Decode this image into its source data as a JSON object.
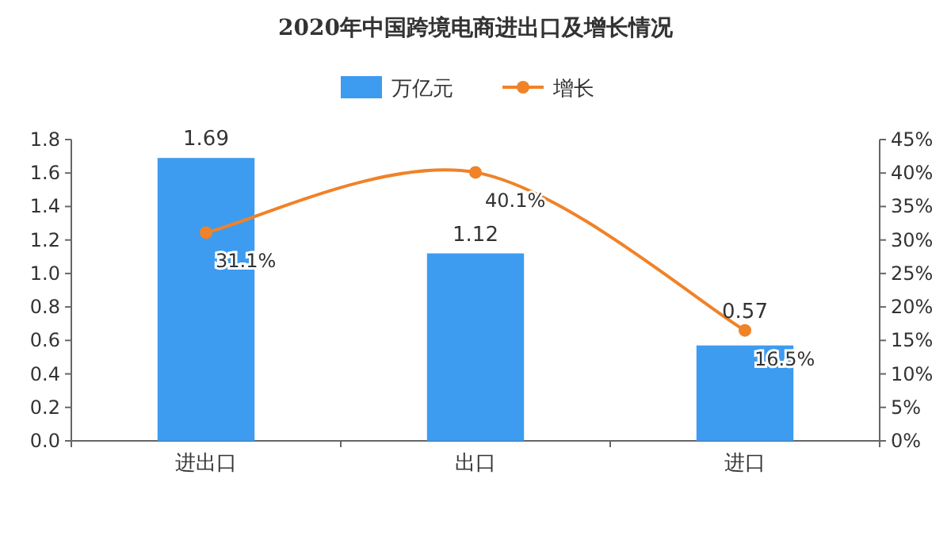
{
  "chart_data": {
    "type": "bar",
    "title": "2020年中国跨境电商进出口及增长情况",
    "categories": [
      "进出口",
      "出口",
      "进口"
    ],
    "series": [
      {
        "name": "万亿元",
        "color": "#3d9cf0",
        "values": [
          1.69,
          1.12,
          0.57
        ],
        "value_labels": [
          "1.69",
          "1.12",
          "0.57"
        ]
      },
      {
        "name": "增长",
        "type": "line",
        "axis": "y2",
        "color": "#f08228",
        "marker": "circle",
        "values": [
          31.1,
          40.1,
          16.5
        ],
        "value_labels": [
          "31.1%",
          "40.1%",
          "16.5%"
        ]
      }
    ],
    "ylim": [
      0,
      1.8
    ],
    "yticks": [
      {
        "value": 0,
        "label": "0.0"
      },
      {
        "value": 0.2,
        "label": "0.2"
      },
      {
        "value": 0.4,
        "label": "0.4"
      },
      {
        "value": 0.6,
        "label": "0.6"
      },
      {
        "value": 0.8,
        "label": "0.8"
      },
      {
        "value": 1.0,
        "label": "1.0"
      },
      {
        "value": 1.2,
        "label": "1.2"
      },
      {
        "value": 1.4,
        "label": "1.4"
      },
      {
        "value": 1.6,
        "label": "1.6"
      },
      {
        "value": 1.8,
        "label": "1.8"
      }
    ],
    "y2lim": [
      0,
      45
    ],
    "y2ticks": [
      {
        "value": 0,
        "label": "0%"
      },
      {
        "value": 5,
        "label": "5%"
      },
      {
        "value": 10,
        "label": "10%"
      },
      {
        "value": 15,
        "label": "15%"
      },
      {
        "value": 20,
        "label": "20%"
      },
      {
        "value": 25,
        "label": "25%"
      },
      {
        "value": 30,
        "label": "30%"
      },
      {
        "value": 35,
        "label": "35%"
      },
      {
        "value": 40,
        "label": "40%"
      },
      {
        "value": 45,
        "label": "45%"
      }
    ],
    "legend": "top",
    "grid": false
  }
}
